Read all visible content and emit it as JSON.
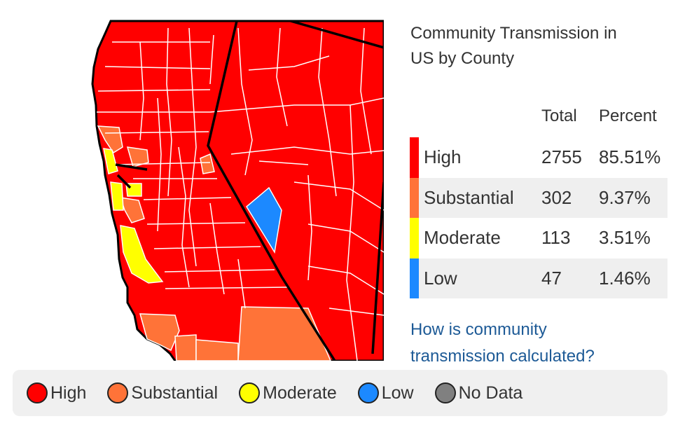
{
  "panel": {
    "title_line1": "Community Transmission in",
    "title_line2": "US by County"
  },
  "table": {
    "header_total": "Total",
    "header_percent": "Percent",
    "rows": [
      {
        "level": "High",
        "total": "2755",
        "percent": "85.51%",
        "color": "#ff0000"
      },
      {
        "level": "Substantial",
        "total": "302",
        "percent": "9.37%",
        "color": "#ff7338"
      },
      {
        "level": "Moderate",
        "total": "113",
        "percent": "3.51%",
        "color": "#ffff00"
      },
      {
        "level": "Low",
        "total": "47",
        "percent": "1.46%",
        "color": "#1c89ff"
      }
    ]
  },
  "link": {
    "line1": "How is community",
    "line2": "transmission calculated?"
  },
  "legend": {
    "items": [
      {
        "label": "High",
        "color": "#ff0000"
      },
      {
        "label": "Substantial",
        "color": "#ff7338"
      },
      {
        "label": "Moderate",
        "color": "#ffff00"
      },
      {
        "label": "Low",
        "color": "#1c89ff"
      },
      {
        "label": "No Data",
        "color": "#808080"
      }
    ]
  },
  "map": {
    "base_color": "#ff0000",
    "county_border_color": "#ffffff",
    "state_border_color": "#000000"
  }
}
